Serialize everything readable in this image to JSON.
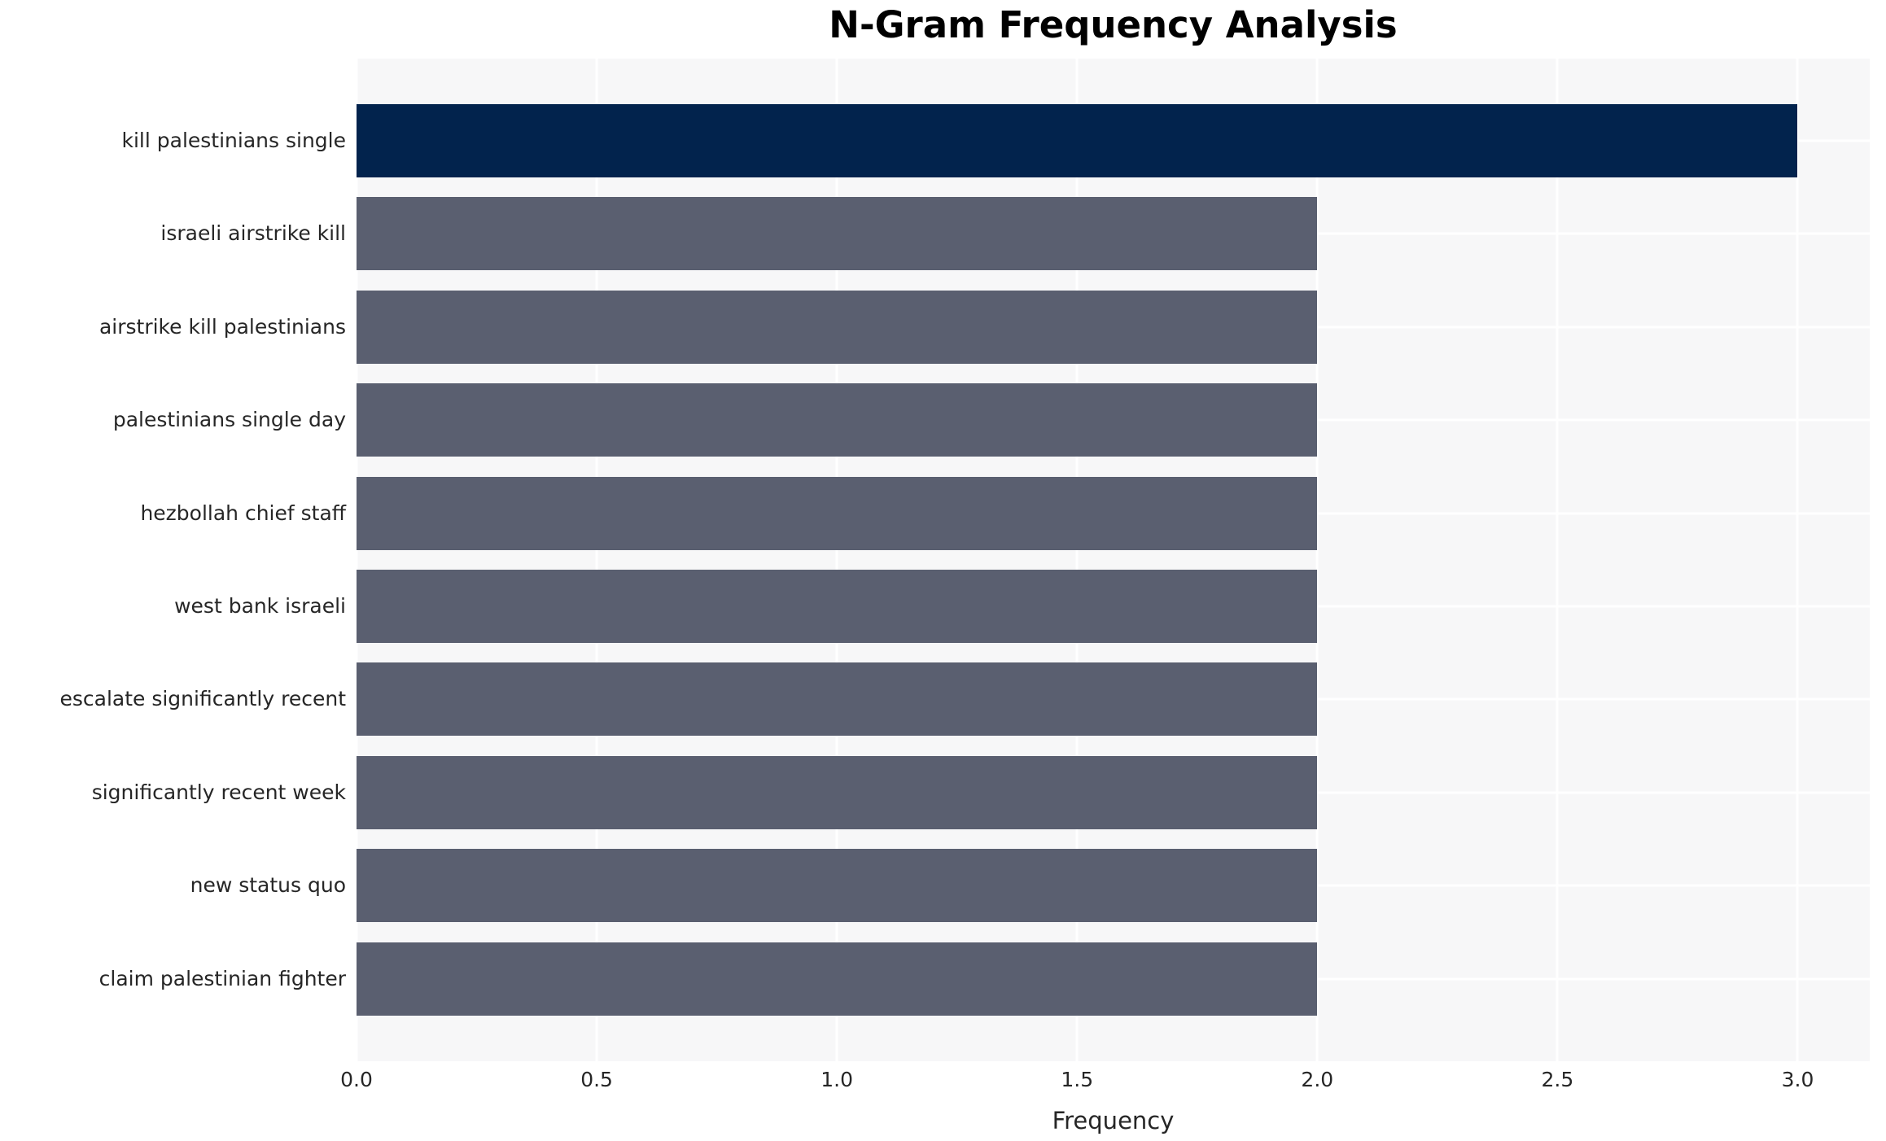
{
  "chart_data": {
    "type": "bar",
    "orientation": "horizontal",
    "title": "N-Gram Frequency Analysis",
    "xlabel": "Frequency",
    "ylabel": "",
    "categories": [
      "kill palestinians single",
      "israeli airstrike kill",
      "airstrike kill palestinians",
      "palestinians single day",
      "hezbollah chief staff",
      "west bank israeli",
      "escalate significantly recent",
      "significantly recent week",
      "new status quo",
      "claim palestinian fighter"
    ],
    "values": [
      3,
      2,
      2,
      2,
      2,
      2,
      2,
      2,
      2,
      2
    ],
    "bar_colors": [
      "#02234d",
      "#5a5f70",
      "#5a5f70",
      "#5a5f70",
      "#5a5f70",
      "#5a5f70",
      "#5a5f70",
      "#5a5f70",
      "#5a5f70",
      "#5a5f70"
    ],
    "xticks": [
      0.0,
      0.5,
      1.0,
      1.5,
      2.0,
      2.5,
      3.0
    ],
    "xtick_labels": [
      "0.0",
      "0.5",
      "1.0",
      "1.5",
      "2.0",
      "2.5",
      "3.0"
    ],
    "xlim": [
      0,
      3.15
    ],
    "grid": true,
    "legend_position": "none",
    "colors": {
      "plot_background": "#f7f7f8",
      "figure_background": "#ffffff",
      "grid_line": "#ffffff",
      "tick_text": "#262626",
      "title_text": "#000000"
    }
  }
}
